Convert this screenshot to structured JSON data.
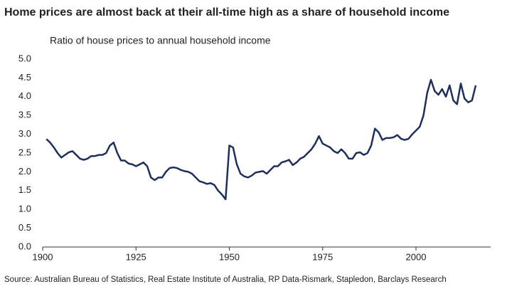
{
  "chart_data": {
    "type": "line",
    "title": "Home prices are almost back at their all-time high as a share of household income",
    "ylabel": "Ratio of house prices to annual household income",
    "source": "Source: Australian Bureau of Statistics, Real Estate Institute of Australia, RP Data-Rismark, Stapledon, Barclays Research",
    "x": [
      1901,
      1902,
      1903,
      1904,
      1905,
      1906,
      1907,
      1908,
      1909,
      1910,
      1911,
      1912,
      1913,
      1914,
      1915,
      1916,
      1917,
      1918,
      1919,
      1920,
      1921,
      1922,
      1923,
      1924,
      1925,
      1926,
      1927,
      1928,
      1929,
      1930,
      1931,
      1932,
      1933,
      1934,
      1935,
      1936,
      1937,
      1938,
      1939,
      1940,
      1941,
      1942,
      1943,
      1944,
      1945,
      1946,
      1947,
      1948,
      1949,
      1950,
      1951,
      1952,
      1953,
      1954,
      1955,
      1956,
      1957,
      1958,
      1959,
      1960,
      1961,
      1962,
      1963,
      1964,
      1965,
      1966,
      1967,
      1968,
      1969,
      1970,
      1971,
      1972,
      1973,
      1974,
      1975,
      1976,
      1977,
      1978,
      1979,
      1980,
      1981,
      1982,
      1983,
      1984,
      1985,
      1986,
      1987,
      1988,
      1989,
      1990,
      1991,
      1992,
      1993,
      1994,
      1995,
      1996,
      1997,
      1998,
      1999,
      2000,
      2001,
      2002,
      2003,
      2004,
      2005,
      2006,
      2007,
      2008,
      2009,
      2010,
      2011,
      2012,
      2013,
      2014,
      2015,
      2016
    ],
    "series": [
      {
        "name": "Ratio",
        "color": "#1f2f5c",
        "values": [
          2.87,
          2.78,
          2.65,
          2.5,
          2.38,
          2.45,
          2.52,
          2.55,
          2.45,
          2.35,
          2.32,
          2.35,
          2.42,
          2.42,
          2.45,
          2.45,
          2.5,
          2.7,
          2.78,
          2.5,
          2.3,
          2.3,
          2.22,
          2.2,
          2.15,
          2.2,
          2.25,
          2.15,
          1.85,
          1.78,
          1.85,
          1.85,
          2.0,
          2.1,
          2.12,
          2.1,
          2.05,
          2.02,
          2.0,
          1.95,
          1.85,
          1.75,
          1.72,
          1.68,
          1.7,
          1.65,
          1.5,
          1.4,
          1.27,
          2.7,
          2.65,
          2.2,
          1.95,
          1.88,
          1.85,
          1.9,
          1.98,
          2.0,
          2.02,
          1.95,
          2.05,
          2.15,
          2.15,
          2.25,
          2.28,
          2.32,
          2.18,
          2.25,
          2.35,
          2.4,
          2.5,
          2.6,
          2.75,
          2.95,
          2.75,
          2.7,
          2.65,
          2.55,
          2.5,
          2.6,
          2.5,
          2.35,
          2.35,
          2.5,
          2.52,
          2.45,
          2.5,
          2.7,
          3.15,
          3.05,
          2.85,
          2.9,
          2.9,
          2.92,
          2.98,
          2.88,
          2.85,
          2.88,
          3.0,
          3.1,
          3.2,
          3.5,
          4.1,
          4.45,
          4.15,
          4.05,
          4.2,
          4.0,
          4.3,
          3.9,
          3.8,
          4.35,
          3.95,
          3.85,
          3.9,
          4.3
        ]
      }
    ],
    "xlim": [
      1900,
      2020
    ],
    "xticks": [
      1900,
      1925,
      1950,
      1975,
      2000
    ],
    "ylim": [
      0,
      5
    ],
    "yticks": [
      {
        "value": 0,
        "label": "0.0"
      },
      0.5,
      {
        "value": 1,
        "label": "1.0"
      },
      1.5,
      {
        "value": 2,
        "label": "2.0"
      },
      2.5,
      {
        "value": 3,
        "label": "3.0"
      },
      3.5,
      {
        "value": 4,
        "label": "4.0"
      },
      4.5,
      {
        "value": 5,
        "label": "5.0"
      }
    ]
  }
}
